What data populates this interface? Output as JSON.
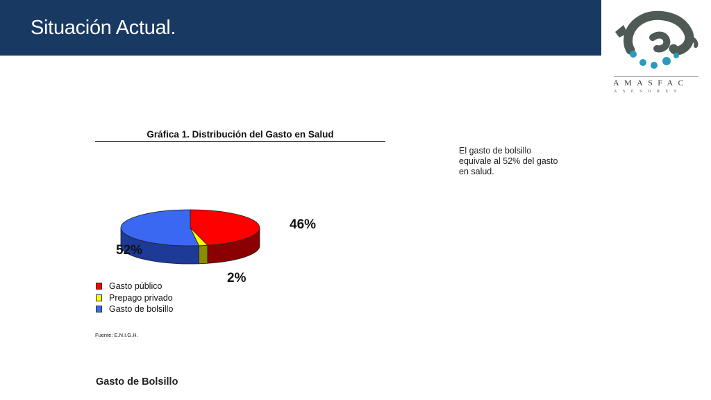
{
  "slide": {
    "title": "Situación Actual."
  },
  "logo": {
    "name": "AMASFAC",
    "subtitle": "ASESORES"
  },
  "annotation": {
    "text": "El gasto de bolsillo equivale al 52% del gasto en salud."
  },
  "bottom_heading": "Gasto de Bolsillo",
  "chart_data": {
    "type": "pie",
    "title": "Gráfica 1.  Distribución del Gasto en Salud",
    "source": "Fuente: E.N.I.G.H.",
    "legend_placement": "bottom-left",
    "slices": [
      {
        "label": "Gasto público",
        "value": 46,
        "value_label": "46%",
        "color": "#ff0000",
        "side_color": "#8b0000"
      },
      {
        "label": "Prepago privado",
        "value": 2,
        "value_label": "2%",
        "color": "#ffff00",
        "side_color": "#8c8c00"
      },
      {
        "label": "Gasto de bolsillo",
        "value": 52,
        "value_label": "52%",
        "color": "#3a68f0",
        "side_color": "#1c3a96"
      }
    ]
  }
}
